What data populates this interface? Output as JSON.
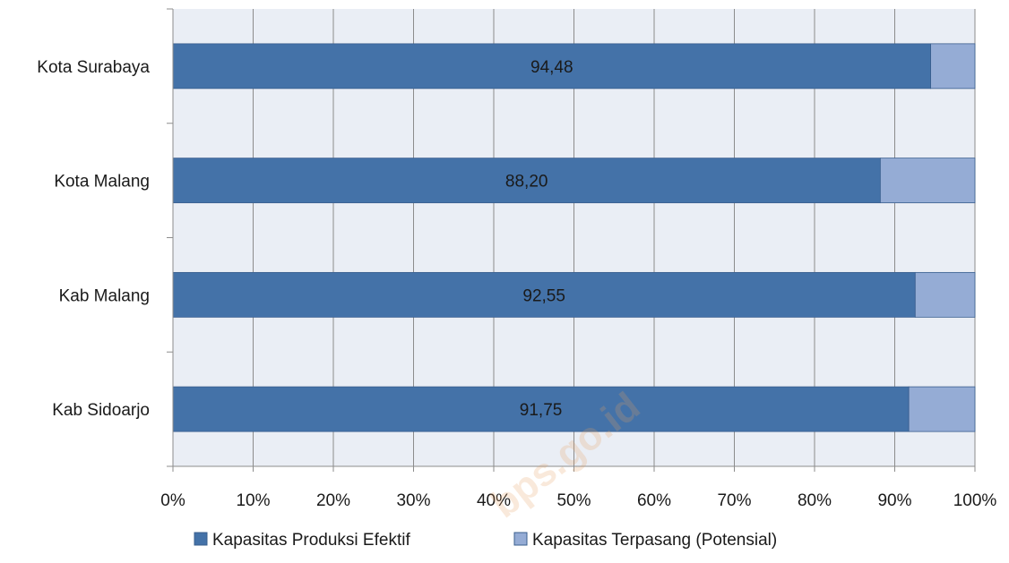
{
  "chart_data": {
    "type": "bar",
    "orientation": "horizontal",
    "stacked": "percent",
    "categories": [
      "Kota Surabaya",
      "Kota Malang",
      "Kab Malang",
      "Kab Sidoarjo"
    ],
    "series": [
      {
        "name": "Kapasitas Produksi Efektif",
        "values": [
          94.48,
          88.2,
          92.55,
          91.75
        ],
        "color": "#4472A8"
      },
      {
        "name": "Kapasitas Terpasang (Potensial)",
        "values": [
          5.52,
          11.8,
          7.45,
          8.25
        ],
        "color": "#95ACD5"
      }
    ],
    "data_labels": [
      "94,48",
      "88,20",
      "92,55",
      "91,75"
    ],
    "x_ticks": [
      "0%",
      "10%",
      "20%",
      "30%",
      "40%",
      "50%",
      "60%",
      "70%",
      "80%",
      "90%",
      "100%"
    ],
    "xlim": [
      0,
      100
    ],
    "grid": true,
    "legend_position": "bottom",
    "plot_background": "#EAEEF5",
    "watermark": "bps.go.id"
  }
}
